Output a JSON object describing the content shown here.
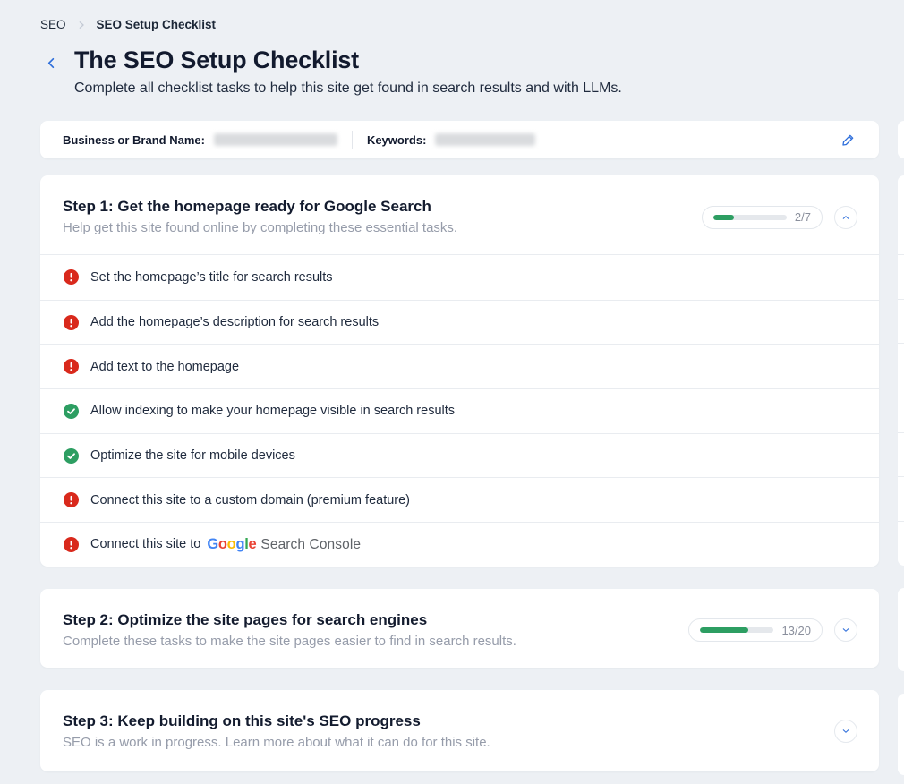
{
  "breadcrumb": {
    "parent": "SEO",
    "current": "SEO Setup Checklist"
  },
  "header": {
    "title": "The SEO Setup Checklist",
    "subtitle": "Complete all checklist tasks to help this site get found in search results and with LLMs."
  },
  "brand_bar": {
    "business_label": "Business or Brand Name:",
    "business_value_redacted": true,
    "keywords_label": "Keywords:",
    "keywords_value_redacted": true
  },
  "steps": [
    {
      "title": "Step 1: Get the homepage ready for Google Search",
      "subtitle": "Help get this site found online by completing these essential tasks.",
      "progress_label": "2/7",
      "progress_pct": 28.6,
      "expanded": true,
      "items": [
        {
          "label": "Set the homepage’s title for search results",
          "status": "error"
        },
        {
          "label": "Add the homepage’s description for search results",
          "status": "error"
        },
        {
          "label": "Add text to the homepage",
          "status": "error"
        },
        {
          "label": "Allow indexing to make your homepage visible in search results",
          "status": "done"
        },
        {
          "label": "Optimize the site for mobile devices",
          "status": "done"
        },
        {
          "label": "Connect this site to a custom domain (premium feature)",
          "status": "error"
        },
        {
          "label": "Connect this site to",
          "status": "error",
          "has_logo": "Google Search Console"
        }
      ]
    },
    {
      "title": "Step 2: Optimize the site pages for search engines",
      "subtitle": "Complete these tasks to make the site pages easier to find in search results.",
      "progress_label": "13/20",
      "progress_pct": 65,
      "expanded": false
    },
    {
      "title": "Step 3: Keep building on this site's SEO progress",
      "subtitle": "SEO is a work in progress. Learn more about what it can do for this site.",
      "expanded": false
    }
  ],
  "google_logo": {
    "letters": [
      "G",
      "o",
      "o",
      "g",
      "l",
      "e"
    ],
    "letter_colors": [
      "#4285F4",
      "#EA4335",
      "#FBBC05",
      "#4285F4",
      "#34A853",
      "#EA4335"
    ],
    "suffix": "Search Console"
  },
  "colors": {
    "accent_blue": "#2f6fdb",
    "success_green": "#2d9e62",
    "error_red": "#d9291c",
    "page_background": "#edf0f4",
    "muted_text": "#969caa"
  }
}
